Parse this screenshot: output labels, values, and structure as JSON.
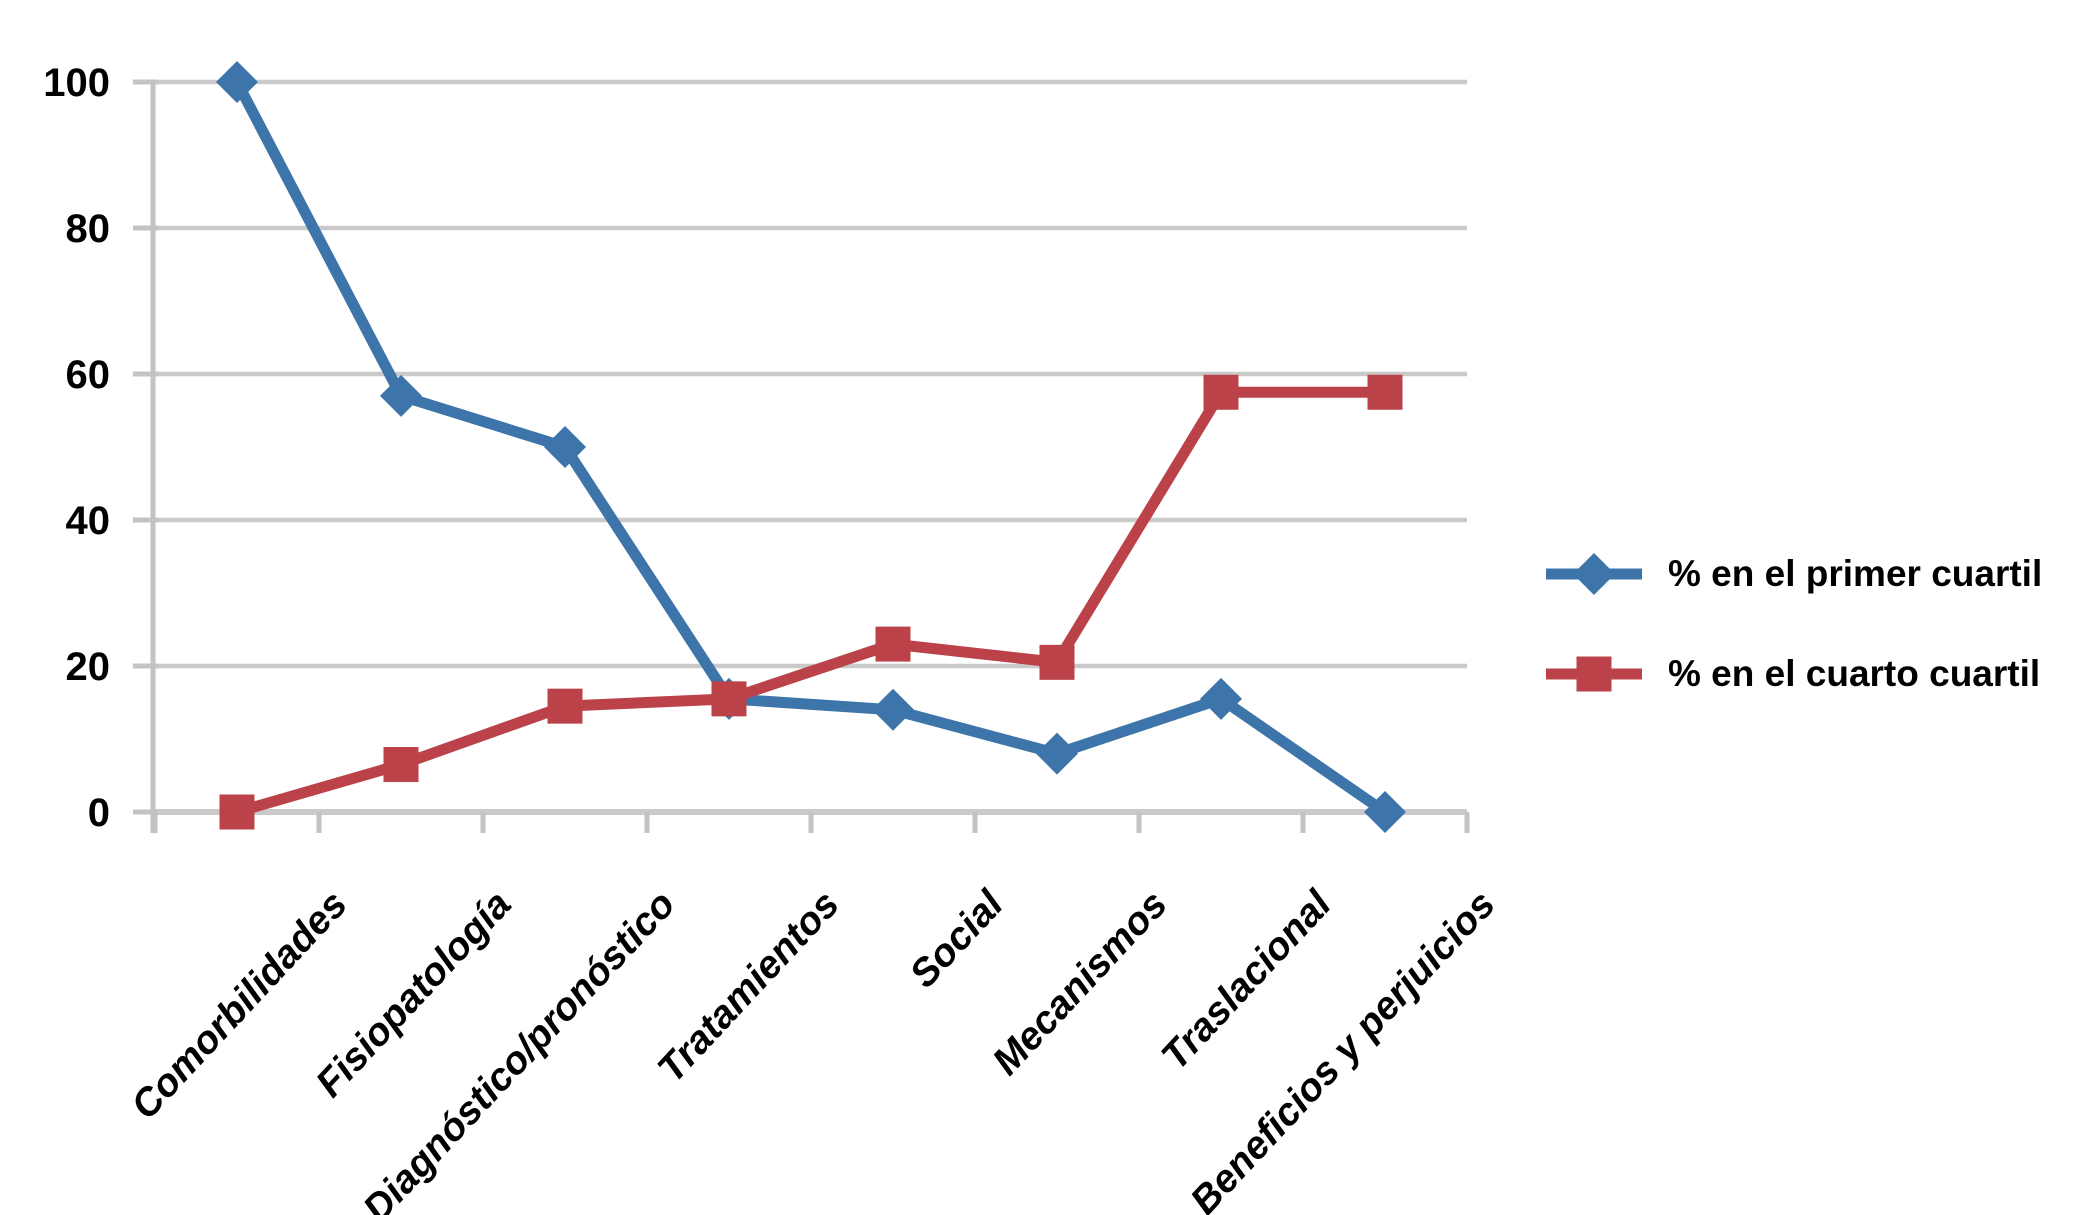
{
  "page": {
    "background": "#FFFFFF"
  },
  "chart_data": {
    "type": "line",
    "title": "",
    "xlabel": "",
    "ylabel": "",
    "categories": [
      "Comorbilidades",
      "Fisiopatología",
      "Diagnóstico/pronóstico",
      "Tratamientos",
      "Social",
      "Mecanismos",
      "Traslacional",
      "Beneficios y perjuicios"
    ],
    "series": [
      {
        "name": "% en el primer cuartil",
        "color": "#3D74A9",
        "marker": "diamond",
        "values": [
          100,
          57,
          50,
          15.5,
          14,
          8,
          15.5,
          0
        ]
      },
      {
        "name": "% en el cuarto cuartil",
        "color": "#BB4249",
        "marker": "square",
        "values": [
          0,
          6.5,
          14.5,
          15.5,
          23,
          20.5,
          57.5,
          57.5
        ]
      }
    ],
    "ylim": [
      0,
      100
    ],
    "yticks": [
      0,
      20,
      40,
      60,
      80,
      100
    ],
    "ytick_labels": [
      "0",
      "20",
      "40",
      "60",
      "80",
      "100"
    ],
    "grid": "horizontal",
    "gridline_color": "#CACACA",
    "axis_color": "#C3C3C3",
    "text_color": "#000000",
    "legend_position": "right",
    "x_label_rotation_deg": -47
  }
}
